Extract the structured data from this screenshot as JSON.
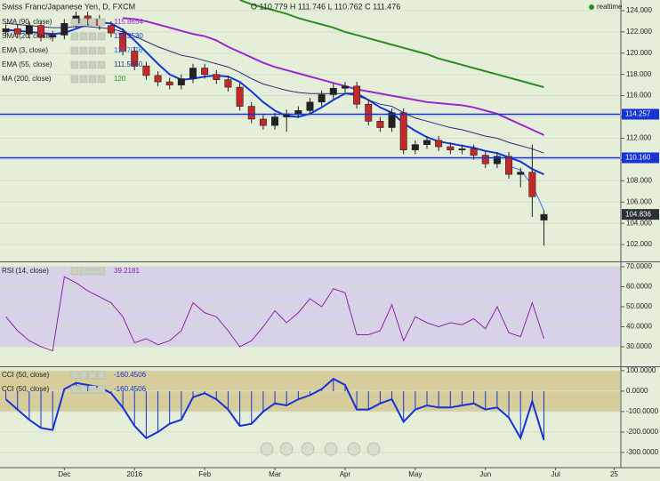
{
  "header": {
    "title": "Swiss Franc/Japanese Yen, D, FXCM",
    "ohlc": "O 110.779 H 111.746 L 110.762 C 111.476",
    "status": "realtime"
  },
  "chart_data": [
    {
      "type": "candlestick",
      "categories": [
        null,
        null,
        null,
        null,
        null,
        "Dec",
        null,
        null,
        null,
        null,
        null,
        "2016",
        null,
        null,
        null,
        null,
        null,
        "Feb",
        null,
        null,
        null,
        null,
        null,
        "Mar",
        null,
        null,
        null,
        null,
        null,
        "Apr",
        null,
        null,
        null,
        null,
        null,
        "May",
        null,
        null,
        null,
        null,
        null,
        "Jun",
        null,
        null,
        null,
        null,
        null,
        "Jul",
        null,
        null,
        null,
        null,
        "25"
      ],
      "open": [
        122.0,
        122.3,
        121.8,
        122.6,
        121.5,
        121.7,
        122.8,
        123.5,
        123.2,
        122.6,
        121.9,
        120.2,
        118.8,
        117.9,
        117.3,
        117.0,
        117.6,
        118.6,
        118.0,
        117.5,
        116.8,
        115.0,
        113.8,
        113.2,
        114.0,
        114.3,
        114.6,
        115.4,
        116.1,
        116.7,
        116.9,
        115.2,
        113.6,
        113.0,
        114.4,
        110.9,
        111.4,
        111.8,
        111.2,
        110.9,
        111.0,
        110.4,
        109.6,
        110.3,
        108.6,
        108.8,
        104.3,
        null,
        null,
        null,
        null,
        null,
        null
      ],
      "high": [
        122.7,
        122.7,
        123.0,
        123.0,
        122.1,
        123.2,
        123.9,
        123.9,
        123.6,
        123.0,
        122.3,
        120.6,
        119.2,
        118.3,
        117.7,
        118.0,
        119.0,
        119.0,
        118.4,
        117.9,
        117.2,
        115.4,
        114.2,
        114.4,
        114.7,
        115.0,
        115.8,
        116.5,
        117.1,
        117.3,
        117.3,
        115.6,
        114.0,
        114.8,
        114.8,
        111.8,
        112.2,
        112.2,
        111.6,
        111.4,
        111.4,
        110.8,
        110.7,
        110.7,
        109.2,
        111.4,
        105.2,
        null,
        null,
        null,
        null,
        null,
        null
      ],
      "low": [
        121.6,
        121.4,
        121.4,
        121.1,
        121.1,
        121.3,
        122.4,
        122.8,
        122.2,
        121.5,
        119.8,
        118.4,
        117.5,
        116.9,
        116.6,
        116.6,
        117.2,
        117.6,
        117.1,
        116.4,
        114.6,
        113.4,
        112.8,
        112.8,
        112.6,
        113.9,
        114.2,
        115.0,
        115.7,
        116.3,
        114.8,
        113.2,
        112.6,
        112.6,
        110.5,
        110.5,
        111.0,
        110.8,
        110.5,
        110.5,
        110.0,
        109.2,
        109.2,
        108.2,
        107.4,
        104.6,
        101.9,
        null,
        null,
        null,
        null,
        null,
        null
      ],
      "close": [
        122.3,
        121.8,
        122.6,
        121.5,
        121.7,
        122.8,
        123.5,
        123.2,
        122.6,
        121.9,
        120.2,
        118.8,
        117.9,
        117.3,
        117.0,
        117.6,
        118.6,
        118.0,
        117.5,
        116.8,
        115.0,
        113.8,
        113.2,
        114.0,
        114.3,
        114.6,
        115.4,
        116.1,
        116.7,
        116.9,
        115.2,
        113.6,
        113.0,
        114.4,
        110.9,
        111.4,
        111.8,
        111.2,
        110.9,
        111.0,
        110.4,
        109.6,
        110.3,
        108.6,
        108.8,
        106.5,
        104.836,
        null,
        null,
        null,
        null,
        null,
        null
      ],
      "up_color": "#222222",
      "down_color": "#c62828",
      "series": [
        {
          "name": "SMA (90, close)",
          "legend_value": "115.8654",
          "color": "#9c27d0",
          "width": 2,
          "values": [
            null,
            null,
            null,
            null,
            null,
            null,
            null,
            null,
            null,
            null,
            123.3,
            123.2,
            123.0,
            122.7,
            122.4,
            122.1,
            121.8,
            121.6,
            121.2,
            120.6,
            120.1,
            119.6,
            119.1,
            118.7,
            118.4,
            118.1,
            117.8,
            117.5,
            117.2,
            116.9,
            116.6,
            116.4,
            116.2,
            116.0,
            115.8,
            115.6,
            115.4,
            115.3,
            115.2,
            115.1,
            114.9,
            114.6,
            114.3,
            113.8,
            113.3,
            112.8,
            112.3,
            null,
            null,
            null,
            null,
            null,
            null
          ]
        },
        {
          "name": "SMA (20, close)",
          "legend_value": "113.3530",
          "color": "#1536d8",
          "width": 2,
          "values": [
            122.2,
            122.1,
            122.0,
            121.9,
            121.8,
            121.9,
            122.3,
            122.7,
            122.9,
            122.8,
            122.2,
            121.2,
            120.1,
            119.0,
            118.0,
            117.5,
            117.6,
            117.8,
            117.9,
            117.8,
            117.3,
            116.4,
            115.4,
            114.6,
            114.1,
            114.0,
            114.3,
            114.9,
            115.6,
            116.2,
            116.2,
            115.6,
            114.9,
            114.4,
            113.4,
            112.7,
            112.1,
            111.7,
            111.5,
            111.3,
            111.1,
            110.8,
            110.6,
            110.2,
            109.8,
            109.1,
            108.6,
            null,
            null,
            null,
            null,
            null,
            null
          ]
        },
        {
          "name": "EMA (3, close)",
          "legend_value": "111.7076",
          "color": "#2f6ff0",
          "width": 1,
          "values": [
            null,
            null,
            null,
            null,
            null,
            null,
            null,
            null,
            null,
            null,
            null,
            null,
            null,
            null,
            null,
            null,
            null,
            null,
            null,
            null,
            null,
            null,
            null,
            null,
            null,
            null,
            null,
            null,
            null,
            null,
            null,
            null,
            null,
            null,
            null,
            null,
            null,
            null,
            null,
            null,
            null,
            null,
            null,
            109.4,
            109.0,
            107.6,
            105.2,
            null,
            null,
            null,
            null,
            null,
            null
          ]
        },
        {
          "name": "EMA (55, close)",
          "legend_value": "111.5850",
          "color": "#27307a",
          "width": 1,
          "values": [
            122.8,
            122.7,
            122.6,
            122.5,
            122.4,
            122.4,
            122.5,
            122.5,
            122.4,
            122.3,
            122.0,
            121.6,
            121.1,
            120.6,
            120.2,
            119.8,
            119.6,
            119.3,
            119.0,
            118.7,
            118.2,
            117.6,
            117.1,
            116.8,
            116.5,
            116.3,
            116.2,
            116.2,
            116.2,
            116.2,
            116.0,
            115.6,
            115.2,
            115.0,
            114.4,
            113.9,
            113.6,
            113.3,
            113.0,
            112.8,
            112.5,
            112.2,
            112.0,
            111.6,
            111.3,
            111.0,
            110.6,
            null,
            null,
            null,
            null,
            null,
            null
          ]
        },
        {
          "name": "MA (200, close)",
          "legend_value": "120",
          "color": "#2e8b22",
          "width": 2,
          "values": [
            null,
            null,
            null,
            null,
            null,
            null,
            null,
            null,
            null,
            null,
            null,
            null,
            null,
            null,
            null,
            null,
            null,
            null,
            null,
            null,
            125.0,
            124.6,
            124.3,
            124.0,
            123.7,
            123.3,
            123.0,
            122.7,
            122.4,
            122.0,
            121.7,
            121.4,
            121.1,
            120.8,
            120.5,
            120.2,
            119.9,
            119.5,
            119.2,
            118.9,
            118.6,
            118.3,
            118.0,
            117.7,
            117.4,
            117.1,
            116.8,
            null,
            null,
            null,
            null,
            null,
            null
          ]
        }
      ],
      "hlines": [
        {
          "value": 114.257,
          "color": "#1533d6"
        },
        {
          "value": 110.16,
          "label": "110.160",
          "color": "#1533d6"
        }
      ],
      "last": 104.836,
      "ylim": [
        100.5,
        125
      ],
      "yticks": [
        {
          "value": 102,
          "label": "102.000"
        },
        {
          "value": 104,
          "label": "104.000"
        },
        {
          "value": 106,
          "label": "106.000"
        },
        {
          "value": 108,
          "label": "108.000"
        },
        {
          "value": 110,
          "label": "110.000"
        },
        {
          "value": 112,
          "label": "112.000"
        },
        {
          "value": 114,
          "label": "114.000"
        },
        {
          "value": 116,
          "label": "116.000"
        },
        {
          "value": 118,
          "label": "118.000"
        },
        {
          "value": 120,
          "label": "120.000"
        },
        {
          "value": 122,
          "label": "122.000"
        },
        {
          "value": 124,
          "label": "124.000"
        }
      ],
      "grid": true
    },
    {
      "type": "line",
      "series": [
        {
          "name": "RSI (14, close)",
          "legend_value": "39.2181",
          "color": "#8e24aa",
          "width": 1,
          "values": [
            45,
            38,
            33,
            30,
            28,
            65,
            62,
            58,
            55,
            52,
            45,
            32,
            34,
            31,
            33,
            38,
            52,
            47,
            45,
            38,
            30,
            33,
            40,
            48,
            42,
            47,
            54,
            50,
            59,
            57,
            36,
            36,
            38,
            51,
            33,
            45,
            42,
            40,
            42,
            41,
            44,
            39,
            50,
            37,
            35,
            52,
            34,
            null,
            null,
            null,
            null,
            null,
            null
          ]
        }
      ],
      "band": [
        30,
        70
      ],
      "band_color": "#d8d2e8",
      "ylim": [
        20.2,
        71.8
      ],
      "yticks": [
        {
          "value": 30,
          "label": "30.0000"
        },
        {
          "value": 40,
          "label": "40.0000"
        },
        {
          "value": 50,
          "label": "50.0000"
        },
        {
          "value": 60,
          "label": "60.0000"
        },
        {
          "value": 70,
          "label": "70.0000"
        }
      ],
      "grid": true
    },
    {
      "type": "line",
      "series": [
        {
          "name": "CCI (50, close)",
          "legend_value": "-160.4506",
          "color": "#1533d6",
          "width": 2,
          "values": [
            -40,
            -90,
            -140,
            -180,
            -190,
            10,
            40,
            30,
            20,
            -10,
            -80,
            -170,
            -230,
            -200,
            -160,
            -140,
            -30,
            -10,
            -40,
            -90,
            -170,
            -160,
            -100,
            -60,
            -70,
            -40,
            -20,
            10,
            60,
            30,
            -90,
            -90,
            -60,
            -40,
            -150,
            -90,
            -70,
            -80,
            -80,
            -70,
            -60,
            -90,
            -80,
            -130,
            -230,
            -50,
            -240,
            null,
            null,
            null,
            null,
            null,
            null
          ]
        },
        {
          "name": "CCI (50, close)",
          "legend_value": "-160.4506",
          "color": "#1533d6",
          "width": 1,
          "style": "histogram",
          "values": [
            -40,
            -90,
            -140,
            -180,
            -190,
            10,
            40,
            30,
            20,
            -10,
            -80,
            -170,
            -230,
            -200,
            -160,
            -140,
            -30,
            -10,
            -40,
            -90,
            -170,
            -160,
            -100,
            -60,
            -70,
            -40,
            -20,
            10,
            60,
            30,
            -90,
            -90,
            -60,
            -40,
            -150,
            -90,
            -70,
            -80,
            -80,
            -70,
            -60,
            -90,
            -80,
            -130,
            -230,
            -50,
            -240,
            null,
            null,
            null,
            null,
            null,
            null
          ]
        }
      ],
      "band": [
        -100,
        100
      ],
      "band_color": "#d6cc9c",
      "ylim": [
        -370,
        117
      ],
      "yticks": [
        {
          "value": -300,
          "label": "-300.0000"
        },
        {
          "value": -200,
          "label": "-200.0000"
        },
        {
          "value": -100,
          "label": "-100.0000"
        },
        {
          "value": 0,
          "label": "0.0000"
        },
        {
          "value": 100,
          "label": "100.0000"
        }
      ],
      "grid": true
    }
  ]
}
